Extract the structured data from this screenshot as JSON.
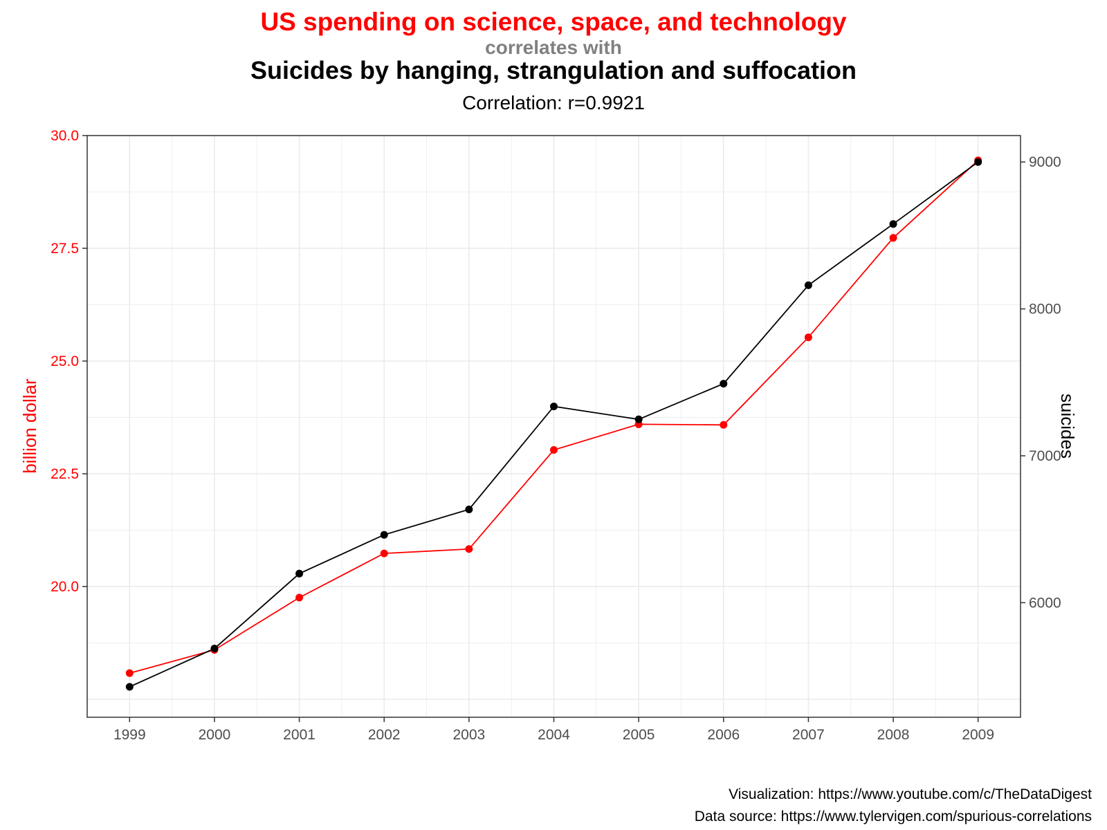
{
  "chart_data": {
    "type": "line",
    "title": "US spending on science, space, and technology",
    "connector": "correlates with",
    "title2": "Suicides by hanging, strangulation and suffocation",
    "subtitle": "Correlation: r=0.9921",
    "ylabel_left": "billion dollar",
    "ylabel_right": "suicides",
    "x": [
      1999,
      2000,
      2001,
      2002,
      2003,
      2004,
      2005,
      2006,
      2007,
      2008,
      2009
    ],
    "y_left_ticks": [
      "20.0",
      "22.5",
      "25.0",
      "27.5",
      "30.0"
    ],
    "y_right_ticks": [
      "6000",
      "7000",
      "8000",
      "9000"
    ],
    "y_left_lim": [
      17.1,
      30.0
    ],
    "y_right_lim": [
      5220,
      9180
    ],
    "grid": true,
    "series": [
      {
        "axis": "left",
        "color": "#ff0000",
        "values": [
          18.079,
          18.594,
          19.753,
          20.734,
          20.831,
          23.029,
          23.597,
          23.584,
          25.525,
          27.731,
          29.449
        ]
      },
      {
        "axis": "right",
        "color": "#000000",
        "values": [
          5427,
          5688,
          6198,
          6462,
          6635,
          7336,
          7248,
          7491,
          8161,
          8578,
          9000
        ]
      }
    ],
    "colors": {
      "title1": "#ff0000",
      "connector": "#808080",
      "left_axis": "#ff0000"
    }
  },
  "caption": {
    "line1": "Visualization: https://www.youtube.com/c/TheDataDigest",
    "line2": "Data source: https://www.tylervigen.com/spurious-correlations"
  }
}
